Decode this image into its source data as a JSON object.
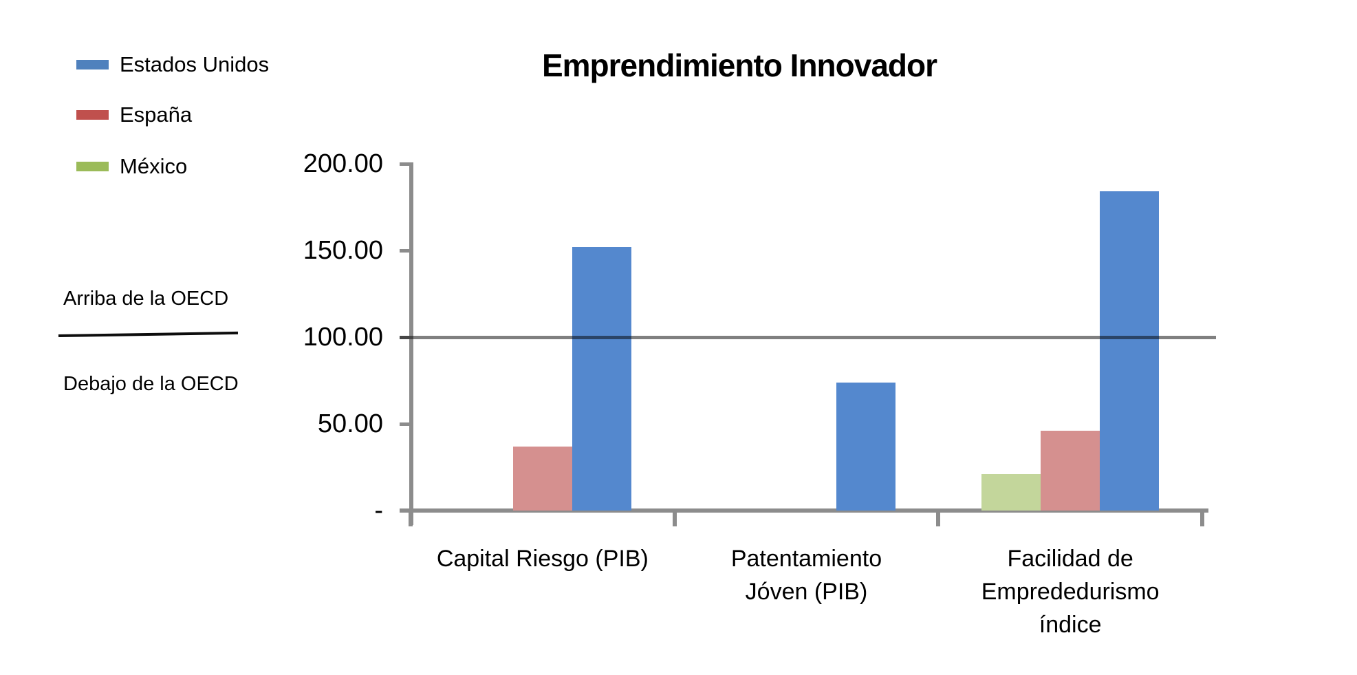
{
  "title": "Emprendimiento Innovador",
  "annotations": {
    "above_line": "Arriba de la OECD",
    "below_line": "Debajo de la OECD"
  },
  "legend": {
    "position": "top-left"
  },
  "chart_data": {
    "type": "bar",
    "title": "Emprendimiento Innovador",
    "categories": [
      [
        "Capital Riesgo (PIB)"
      ],
      [
        "Patentamiento",
        "Jóven (PIB)"
      ],
      [
        "Facilidad de",
        "Emprededurismo",
        "índice"
      ]
    ],
    "series": [
      {
        "name": "Estados Unidos",
        "legend_color": "#4F81BD",
        "bar_color": "#5488CE",
        "values": [
          152,
          74,
          184
        ]
      },
      {
        "name": "España",
        "legend_color": "#C0504D",
        "bar_color": "#D5908F",
        "values": [
          37,
          0,
          46
        ]
      },
      {
        "name": "México",
        "legend_color": "#9BBB59",
        "bar_color": "#C3D69B",
        "values": [
          0,
          0,
          21
        ]
      }
    ],
    "ylim": [
      0,
      200
    ],
    "yticks": [
      {
        "value": 200,
        "label": "200.00"
      },
      {
        "value": 150,
        "label": "150.00"
      },
      {
        "value": 100,
        "label": "100.00"
      },
      {
        "value": 50,
        "label": "50.00"
      },
      {
        "value": 0,
        "label": "-"
      }
    ],
    "reference_line": {
      "value": 100,
      "color": "#808080"
    },
    "axis_color": "#8c8c8c",
    "grid": false,
    "legend_position": "top-left"
  }
}
